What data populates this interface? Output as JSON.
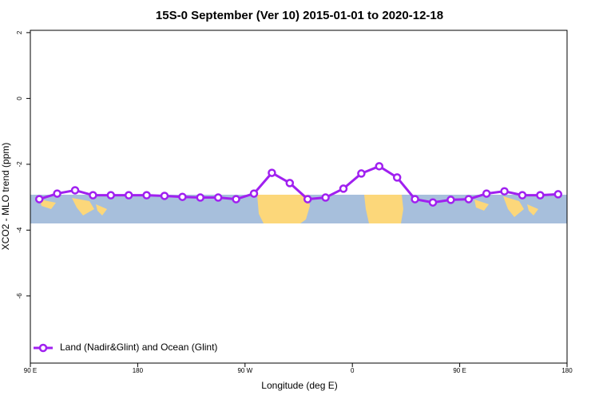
{
  "chart_data": {
    "type": "line",
    "title": "15S-0 September (Ver 10)   2015-01-01 to 2020-12-18",
    "xlabel": "Longitude (deg E)",
    "ylabel": "XCO2 - MLO trend (ppm)",
    "xlim": [
      90,
      540
    ],
    "ylim": [
      -8.04,
      2.07
    ],
    "xticks": [
      {
        "value": 90,
        "label": "90 E"
      },
      {
        "value": 180,
        "label": "180"
      },
      {
        "value": 270,
        "label": "90 W"
      },
      {
        "value": 360,
        "label": "0"
      },
      {
        "value": 450,
        "label": "90 E"
      },
      {
        "value": 540,
        "label": "180"
      }
    ],
    "yticks": [
      2,
      0,
      -2,
      -4,
      -6
    ],
    "legend": "bottom-left",
    "x": [
      97.5,
      112.5,
      127.5,
      142.5,
      157.5,
      172.5,
      187.5,
      202.5,
      217.5,
      232.5,
      247.5,
      262.5,
      277.5,
      292.5,
      307.5,
      322.5,
      337.5,
      352.5,
      367.5,
      382.5,
      397.5,
      412.5,
      427.5,
      442.5,
      457.5,
      472.5,
      487.5,
      502.5,
      517.5,
      532.5
    ],
    "series": [
      {
        "name": "Land (Nadir&Glint) and Ocean (Glint)",
        "color": "#a020f0",
        "values": [
          -3.06,
          -2.89,
          -2.79,
          -2.94,
          -2.94,
          -2.94,
          -2.94,
          -2.96,
          -2.99,
          -3.01,
          -3.01,
          -3.06,
          -2.89,
          -2.26,
          -2.57,
          -3.06,
          -3.01,
          -2.74,
          -2.28,
          -2.06,
          -2.4,
          -3.06,
          -3.16,
          -3.08,
          -3.06,
          -2.89,
          -2.82,
          -2.94,
          -2.94,
          -2.91
        ]
      }
    ]
  }
}
